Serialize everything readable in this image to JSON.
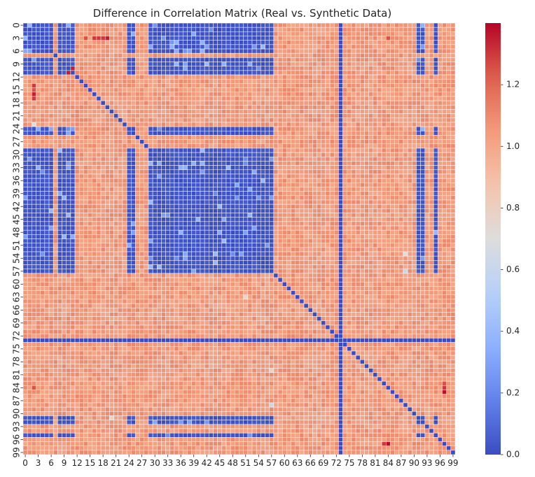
{
  "chart_data": {
    "type": "heatmap",
    "title": "Difference in Correlation Matrix (Real vs. Synthetic Data)",
    "xlabel": "",
    "ylabel": "",
    "size": 100,
    "x_tick_labels": [
      "0",
      "3",
      "6",
      "9",
      "12",
      "15",
      "18",
      "21",
      "24",
      "27",
      "30",
      "33",
      "36",
      "39",
      "42",
      "45",
      "48",
      "51",
      "54",
      "57",
      "60",
      "63",
      "66",
      "69",
      "72",
      "75",
      "78",
      "81",
      "84",
      "87",
      "90",
      "93",
      "96",
      "99"
    ],
    "y_tick_labels": [
      "0",
      "3",
      "6",
      "9",
      "12",
      "15",
      "18",
      "21",
      "24",
      "27",
      "30",
      "33",
      "36",
      "39",
      "42",
      "45",
      "48",
      "51",
      "54",
      "57",
      "60",
      "63",
      "66",
      "69",
      "72",
      "75",
      "78",
      "81",
      "84",
      "87",
      "90",
      "93",
      "96",
      "99"
    ],
    "colorbar": {
      "min": 0.0,
      "max": 1.4,
      "ticks": [
        "0.0",
        "0.2",
        "0.4",
        "0.6",
        "0.8",
        "1.0",
        "1.2"
      ],
      "colormap": "coolwarm",
      "low_color": "#3b4cc0",
      "mid_color": "#dddddd",
      "high_color": "#b40426"
    },
    "values_description_free": true,
    "blocks": {
      "group_a": [
        0,
        1,
        2,
        3,
        4,
        5,
        6,
        8,
        9,
        10,
        11,
        24,
        25,
        29,
        30,
        31,
        32,
        33,
        34,
        35,
        36,
        37,
        38,
        39,
        40,
        41,
        42,
        43,
        44,
        45,
        46,
        47,
        48,
        49,
        50,
        51,
        52,
        53,
        54,
        55,
        56,
        57,
        91,
        92,
        95
      ],
      "constant_zero_index": 73,
      "typical_off_block_value": 1.05,
      "typical_in_block_value": 0.0,
      "hot_cells": [
        {
          "row": 3,
          "col": 14,
          "value": 1.25
        },
        {
          "row": 3,
          "col": 16,
          "value": 1.3
        },
        {
          "row": 3,
          "col": 17,
          "value": 1.3
        },
        {
          "row": 3,
          "col": 18,
          "value": 1.3
        },
        {
          "row": 3,
          "col": 19,
          "value": 1.35
        },
        {
          "row": 3,
          "col": 84,
          "value": 1.25
        },
        {
          "row": 14,
          "col": 2,
          "value": 1.3
        },
        {
          "row": 15,
          "col": 2,
          "value": 1.25
        },
        {
          "row": 16,
          "col": 2,
          "value": 1.35
        },
        {
          "row": 17,
          "col": 2,
          "value": 1.3
        },
        {
          "row": 85,
          "col": 97,
          "value": 1.38
        },
        {
          "row": 84,
          "col": 97,
          "value": 1.3
        },
        {
          "row": 83,
          "col": 97,
          "value": 1.25
        },
        {
          "row": 97,
          "col": 84,
          "value": 1.38
        },
        {
          "row": 97,
          "col": 83,
          "value": 1.3
        },
        {
          "row": 11,
          "col": 10,
          "value": 1.35
        },
        {
          "row": 10,
          "col": 11,
          "value": 1.35
        },
        {
          "row": 84,
          "col": 2,
          "value": 1.25
        }
      ],
      "light_cells": [
        {
          "row": 88,
          "col": 57,
          "value": 0.6
        },
        {
          "row": 57,
          "col": 88,
          "value": 0.6
        },
        {
          "row": 53,
          "col": 88,
          "value": 0.7
        },
        {
          "row": 23,
          "col": 2,
          "value": 0.7
        },
        {
          "row": 63,
          "col": 51,
          "value": 0.75
        },
        {
          "row": 80,
          "col": 57,
          "value": 0.8
        },
        {
          "row": 91,
          "col": 20,
          "value": 0.8
        }
      ]
    }
  }
}
